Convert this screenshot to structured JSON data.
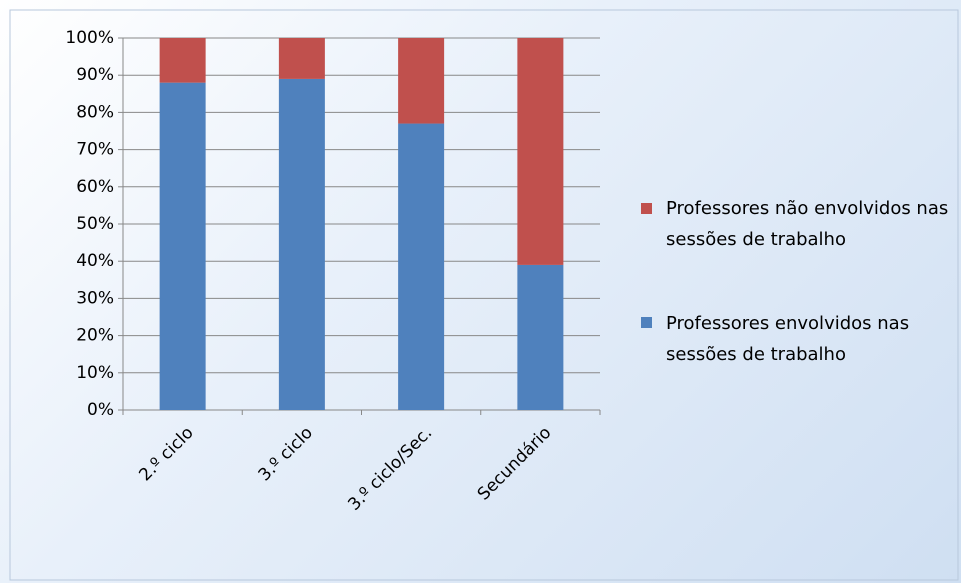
{
  "chart_data": {
    "type": "bar",
    "stacked": true,
    "categories": [
      "2.º ciclo",
      "3.º ciclo",
      "3.º ciclo/Sec.",
      "Secundário"
    ],
    "series": [
      {
        "name": "Professores envolvidos nas sessões de trabalho",
        "color": "#4f81bd",
        "values": [
          88,
          89,
          77,
          39
        ]
      },
      {
        "name": "Professores não envolvidos nas sessões de trabalho",
        "color": "#c0504d",
        "values": [
          12,
          11,
          23,
          61
        ]
      }
    ],
    "ylim": [
      0,
      100
    ],
    "yticks": [
      {
        "value": 0,
        "label": "0%"
      },
      {
        "value": 10,
        "label": "10%"
      },
      {
        "value": 20,
        "label": "20%"
      },
      {
        "value": 30,
        "label": "30%"
      },
      {
        "value": 40,
        "label": "40%"
      },
      {
        "value": 50,
        "label": "50%"
      },
      {
        "value": 60,
        "label": "60%"
      },
      {
        "value": 70,
        "label": "70%"
      },
      {
        "value": 80,
        "label": "80%"
      },
      {
        "value": 90,
        "label": "90%"
      },
      {
        "value": 100,
        "label": "100%"
      }
    ],
    "grid": true,
    "legend": "right"
  }
}
